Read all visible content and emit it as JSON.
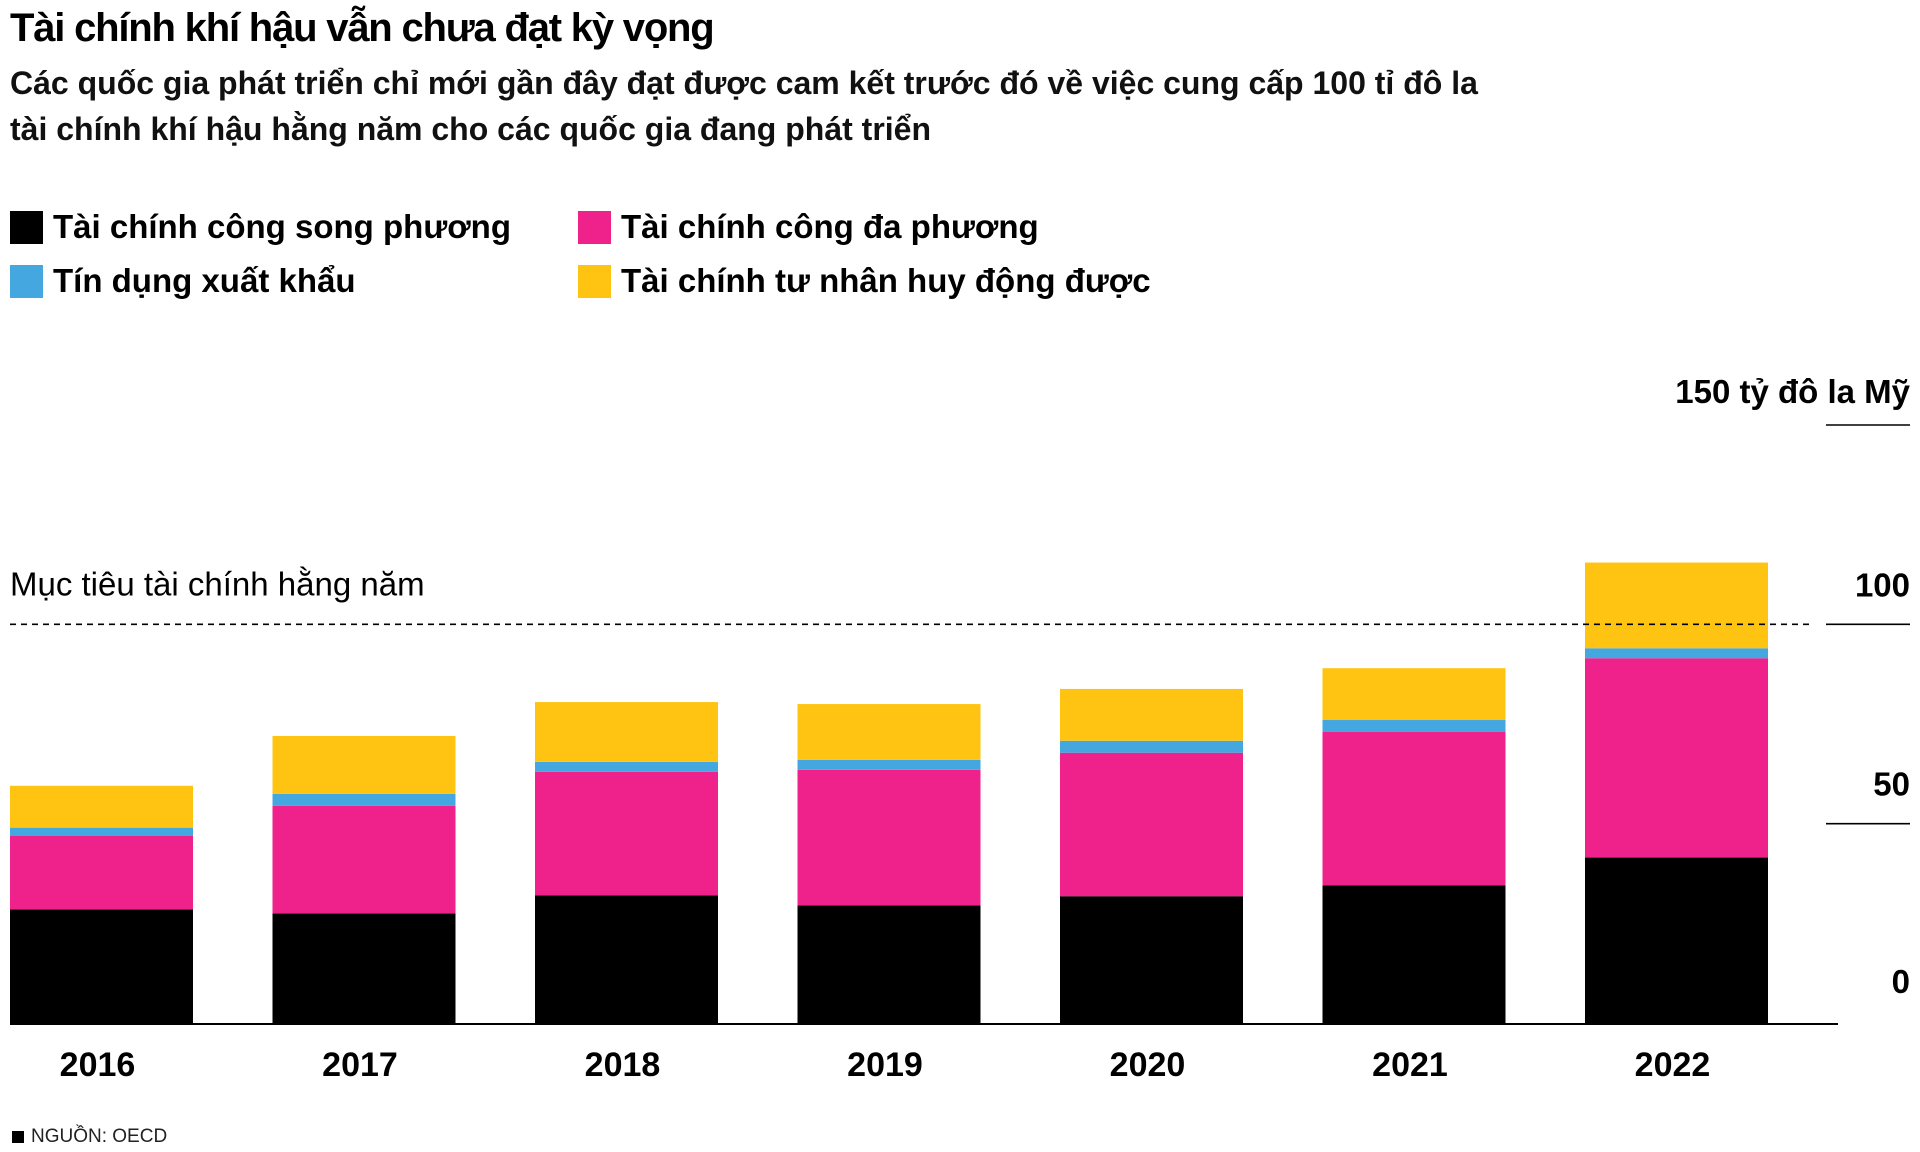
{
  "title": "Tài chính khí hậu vẫn chưa đạt kỳ vọng",
  "subtitle": "Các quốc gia phát triển chỉ mới gần đây đạt được cam kết trước đó về việc cung cấp 100 tỉ đô la tài chính khí hậu hằng năm cho các quốc gia đang phát triển",
  "legend": [
    {
      "label": "Tài chính công song phương",
      "color": "#000000"
    },
    {
      "label": "Tài chính công đa phương",
      "color": "#ef228c"
    },
    {
      "label": "Tín dụng xuất khẩu",
      "color": "#45a7df"
    },
    {
      "label": "Tài chính tư nhân huy động được",
      "color": "#ffc412"
    }
  ],
  "source": "NGUỒN: OECD",
  "chart_data": {
    "type": "bar",
    "stacked": true,
    "title": "Tài chính khí hậu vẫn chưa đạt kỳ vọng",
    "categories": [
      "2016",
      "2017",
      "2018",
      "2019",
      "2020",
      "2021",
      "2022"
    ],
    "series": [
      {
        "name": "Tài chính công song phương",
        "color": "#000000",
        "values": [
          28.5,
          27.5,
          32,
          29.5,
          31.8,
          34.5,
          41.5
        ]
      },
      {
        "name": "Tài chính công đa phương",
        "color": "#ef228c",
        "values": [
          18.5,
          27,
          31,
          34,
          36,
          38.5,
          50
        ]
      },
      {
        "name": "Tín dụng xuất khẩu",
        "color": "#45a7df",
        "values": [
          2,
          3,
          2.5,
          2.5,
          3,
          3,
          2.5
        ]
      },
      {
        "name": "Tài chính tư nhân huy động được",
        "color": "#ffc412",
        "values": [
          10.5,
          14.5,
          15,
          14,
          13,
          13,
          21.5
        ]
      }
    ],
    "ylim": [
      0,
      150
    ],
    "yticks": [
      0,
      50,
      100
    ],
    "ytick_labels": [
      "0",
      "50",
      "100"
    ],
    "yaxis_top_label": "150 tỷ đô la Mỹ",
    "reference_line": {
      "value": 100,
      "label": "Mục tiêu tài chính hằng năm"
    }
  }
}
